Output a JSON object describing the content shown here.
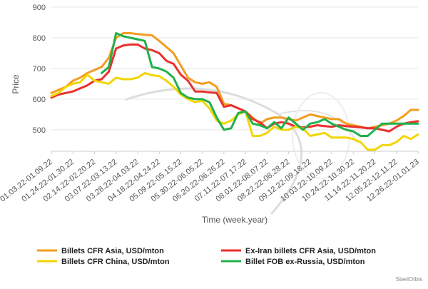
{
  "chart_data": {
    "type": "line",
    "title": "",
    "xlabel": "Time (week.year)",
    "ylabel": "Price",
    "ylim": [
      430,
      900
    ],
    "yticks": [
      500,
      600,
      700,
      800,
      900
    ],
    "grid": true,
    "legend_position": "bottom",
    "x_tick_labels": [
      "01.03.22-01.09.22",
      "01.24.22-01.30.22",
      "02.14.22-02.20.22",
      "03.07.22-03.13.22",
      "03.28.22-04.03.22",
      "04.18.22-04.24.22",
      "05.09.22-05.15.22",
      "05.30.22-06.05.22",
      "06.20.22-06.26.22",
      "07.11.22-07.17.22",
      "08.01.22-08.07.22",
      "08.22.22-08.28.22",
      "09.12.22-09.18.22",
      "10.03.22-10.09.22",
      "10.24.22-10.30.22",
      "11.14.22-11.20.22",
      "12.05.22-12.11.22",
      "12.26.22-01.01.23"
    ],
    "x_count": 52,
    "series": [
      {
        "name": "Billets CFR Asia, USD/mton",
        "color": "#f39c1f",
        "values": [
          620,
          630,
          640,
          660,
          670,
          685,
          695,
          705,
          735,
          800,
          815,
          815,
          812,
          810,
          808,
          790,
          770,
          750,
          710,
          670,
          655,
          650,
          655,
          640,
          585,
          580,
          570,
          560,
          540,
          520,
          535,
          540,
          540,
          535,
          530,
          540,
          550,
          545,
          540,
          535,
          535,
          520,
          515,
          510,
          505,
          510,
          515,
          520,
          530,
          545,
          565,
          565
        ]
      },
      {
        "name": "Ex-Iran billets CFR Asia, USD/mton",
        "color": "#e8312e",
        "values": [
          605,
          615,
          620,
          625,
          635,
          645,
          660,
          665,
          690,
          765,
          775,
          778,
          778,
          765,
          760,
          750,
          725,
          715,
          680,
          660,
          625,
          625,
          622,
          620,
          575,
          580,
          570,
          560,
          535,
          525,
          505,
          520,
          525,
          520,
          510,
          508,
          510,
          515,
          512,
          510,
          515,
          512,
          510,
          508,
          505,
          505,
          500,
          495,
          510,
          520,
          525,
          528
        ]
      },
      {
        "name": "Billets CFR China, USD/mton",
        "color": "#f2d600",
        "values": [
          610,
          620,
          640,
          650,
          655,
          680,
          660,
          655,
          650,
          670,
          665,
          665,
          670,
          685,
          678,
          675,
          660,
          640,
          615,
          600,
          590,
          595,
          570,
          530,
          520,
          530,
          550,
          560,
          480,
          480,
          490,
          510,
          500,
          500,
          510,
          505,
          480,
          485,
          490,
          475,
          475,
          475,
          470,
          460,
          435,
          435,
          450,
          450,
          460,
          480,
          470,
          485
        ]
      },
      {
        "name": "Billet FOB ex-Russia, USD/mton",
        "color": "#22b04b",
        "values": [
          null,
          null,
          null,
          null,
          null,
          null,
          null,
          685,
          705,
          815,
          805,
          800,
          795,
          790,
          705,
          700,
          690,
          670,
          620,
          605,
          600,
          600,
          590,
          540,
          500,
          505,
          555,
          560,
          520,
          515,
          505,
          525,
          505,
          540,
          520,
          500,
          520,
          525,
          535,
          520,
          510,
          500,
          495,
          480,
          480,
          500,
          520,
          520,
          520,
          520,
          520,
          520
        ]
      }
    ]
  },
  "credit": "SteelOrbis"
}
